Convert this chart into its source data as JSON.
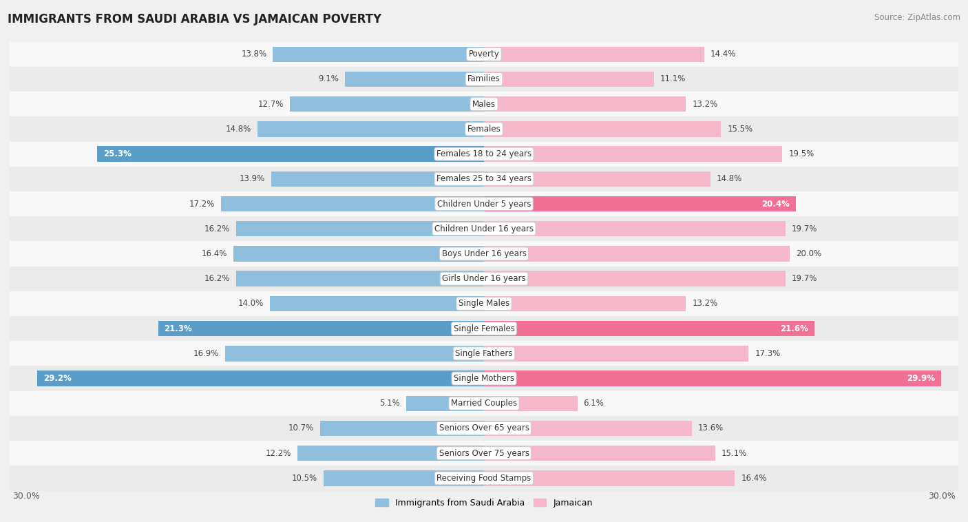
{
  "title": "IMMIGRANTS FROM SAUDI ARABIA VS JAMAICAN POVERTY",
  "source": "Source: ZipAtlas.com",
  "categories": [
    "Poverty",
    "Families",
    "Males",
    "Females",
    "Females 18 to 24 years",
    "Females 25 to 34 years",
    "Children Under 5 years",
    "Children Under 16 years",
    "Boys Under 16 years",
    "Girls Under 16 years",
    "Single Males",
    "Single Females",
    "Single Fathers",
    "Single Mothers",
    "Married Couples",
    "Seniors Over 65 years",
    "Seniors Over 75 years",
    "Receiving Food Stamps"
  ],
  "left_values": [
    13.8,
    9.1,
    12.7,
    14.8,
    25.3,
    13.9,
    17.2,
    16.2,
    16.4,
    16.2,
    14.0,
    21.3,
    16.9,
    29.2,
    5.1,
    10.7,
    12.2,
    10.5
  ],
  "right_values": [
    14.4,
    11.1,
    13.2,
    15.5,
    19.5,
    14.8,
    20.4,
    19.7,
    20.0,
    19.7,
    13.2,
    21.6,
    17.3,
    29.9,
    6.1,
    13.6,
    15.1,
    16.4
  ],
  "left_color_normal": "#90bedd",
  "left_color_highlight": "#5a9dc8",
  "right_color_normal": "#f5b8cb",
  "right_color_highlight": "#f07096",
  "highlight_left": [
    false,
    false,
    false,
    false,
    true,
    false,
    false,
    false,
    false,
    false,
    false,
    true,
    false,
    true,
    false,
    false,
    false,
    false
  ],
  "highlight_right": [
    false,
    false,
    false,
    false,
    false,
    false,
    true,
    false,
    false,
    false,
    false,
    true,
    false,
    true,
    false,
    false,
    false,
    false
  ],
  "max_value": 30.0,
  "bar_height": 0.62,
  "bg_color": "#f0f0f0",
  "row_color_even": "#f8f8f8",
  "row_color_odd": "#ebebeb",
  "legend_left": "Immigrants from Saudi Arabia",
  "legend_right": "Jamaican",
  "label_inside_threshold": 20.0,
  "font_size_bars": 8.5,
  "font_size_title": 12,
  "font_size_source": 8.5,
  "font_size_legend": 9,
  "font_size_axis": 9
}
